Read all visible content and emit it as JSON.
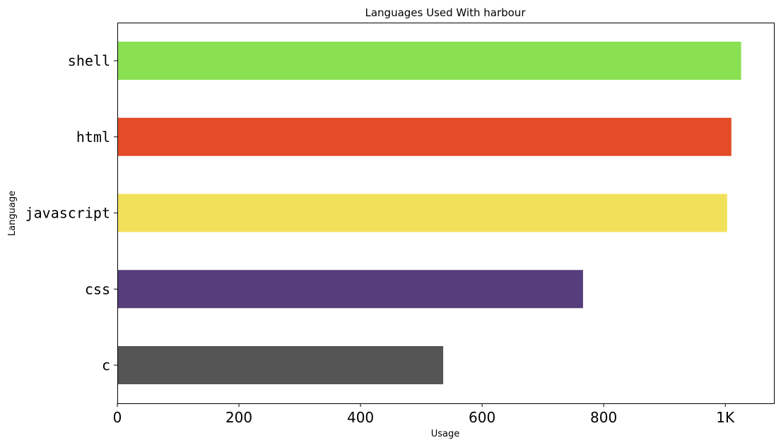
{
  "chart_data": {
    "type": "bar",
    "orientation": "horizontal",
    "title": "Languages Used With harbour",
    "xlabel": "Usage",
    "ylabel": "Language",
    "categories": [
      "c",
      "css",
      "javascript",
      "html",
      "shell"
    ],
    "values": [
      536,
      766,
      1003,
      1010,
      1026
    ],
    "colors": [
      "#555555",
      "#563d7c",
      "#f1e05a",
      "#e34c26",
      "#89e051"
    ],
    "xlim": [
      0,
      1080
    ],
    "xticks": [
      {
        "value": 0,
        "label": "0"
      },
      {
        "value": 200,
        "label": "200"
      },
      {
        "value": 400,
        "label": "400"
      },
      {
        "value": 600,
        "label": "600"
      },
      {
        "value": 800,
        "label": "800"
      },
      {
        "value": 1000,
        "label": "1K"
      }
    ],
    "grid": false,
    "legend": "none"
  }
}
